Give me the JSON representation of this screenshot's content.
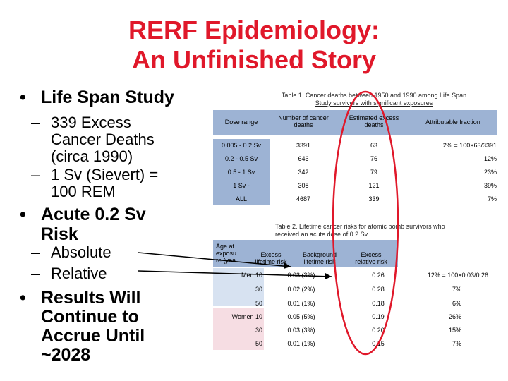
{
  "slide": {
    "title_line1": "RERF Epidemiology:",
    "title_line2": "An Unfinished Story",
    "title_color": "#e0182a"
  },
  "bullets": {
    "b1": "Life Span Study",
    "b1_sub1": "339 Excess\nCancer Deaths\n(circa 1990)",
    "b1_sub2": "1 Sv (Sievert) =\n100 REM",
    "b2_line1": "Acute 0.2 Sv",
    "b2_line2": "Risk",
    "b2_sub1": "Absolute",
    "b2_sub2": "Relative",
    "b3_line1": "Results Will",
    "b3_line2": "Continue to",
    "b3_line3": "Accrue Until",
    "b3_line4": "~2028"
  },
  "table1": {
    "caption_line1": "Table 1. Cancer deaths between 1950 and 1990 among Life Span",
    "caption_line2": "Study survivors with significant exposures",
    "headers": [
      "Dose range",
      "Number of cancer\ndeaths",
      "Estimated excess\ndeaths",
      "Attributable fraction"
    ],
    "rows": [
      [
        "0.005 - 0.2 Sv",
        "3391",
        "63",
        "2% = 100×63/3391"
      ],
      [
        "0.2 - 0.5 Sv",
        "646",
        "76",
        "12%"
      ],
      [
        "0.5 - 1 Sv",
        "342",
        "79",
        "23%"
      ],
      [
        "1 Sv -",
        "308",
        "121",
        "39%"
      ],
      [
        "ALL",
        "4687",
        "339",
        "7%"
      ]
    ]
  },
  "table2": {
    "caption_line1": "Table 2. Lifetime cancer risks for atomic bomb survivors who",
    "caption_line2": "received an acute dose of 0.2 Sv.",
    "headers": [
      "Age at\nexposu\nre (yea",
      "Excess\nlifetime risk",
      "Background\nlifetime risk",
      "Excess\nrelative risk"
    ],
    "rows": [
      [
        "Men 10",
        "0.03 (3%)",
        "0.26",
        "12% = 100×0.03/0.26"
      ],
      [
        "30",
        "0.02 (2%)",
        "0.28",
        "7%"
      ],
      [
        "50",
        "0.01 (1%)",
        "0.18",
        "6%"
      ],
      [
        "Women 10",
        "0.05 (5%)",
        "0.19",
        "26%"
      ],
      [
        "30",
        "0.03 (3%)",
        "0.20",
        "15%"
      ],
      [
        "50",
        "0.01 (1%)",
        "0.15",
        "7%"
      ]
    ]
  },
  "colors": {
    "header_blue": "#9db3d4",
    "men_blue": "#d7e2f1",
    "women_pink": "#f6dde3",
    "circle_red": "#e0182a"
  }
}
